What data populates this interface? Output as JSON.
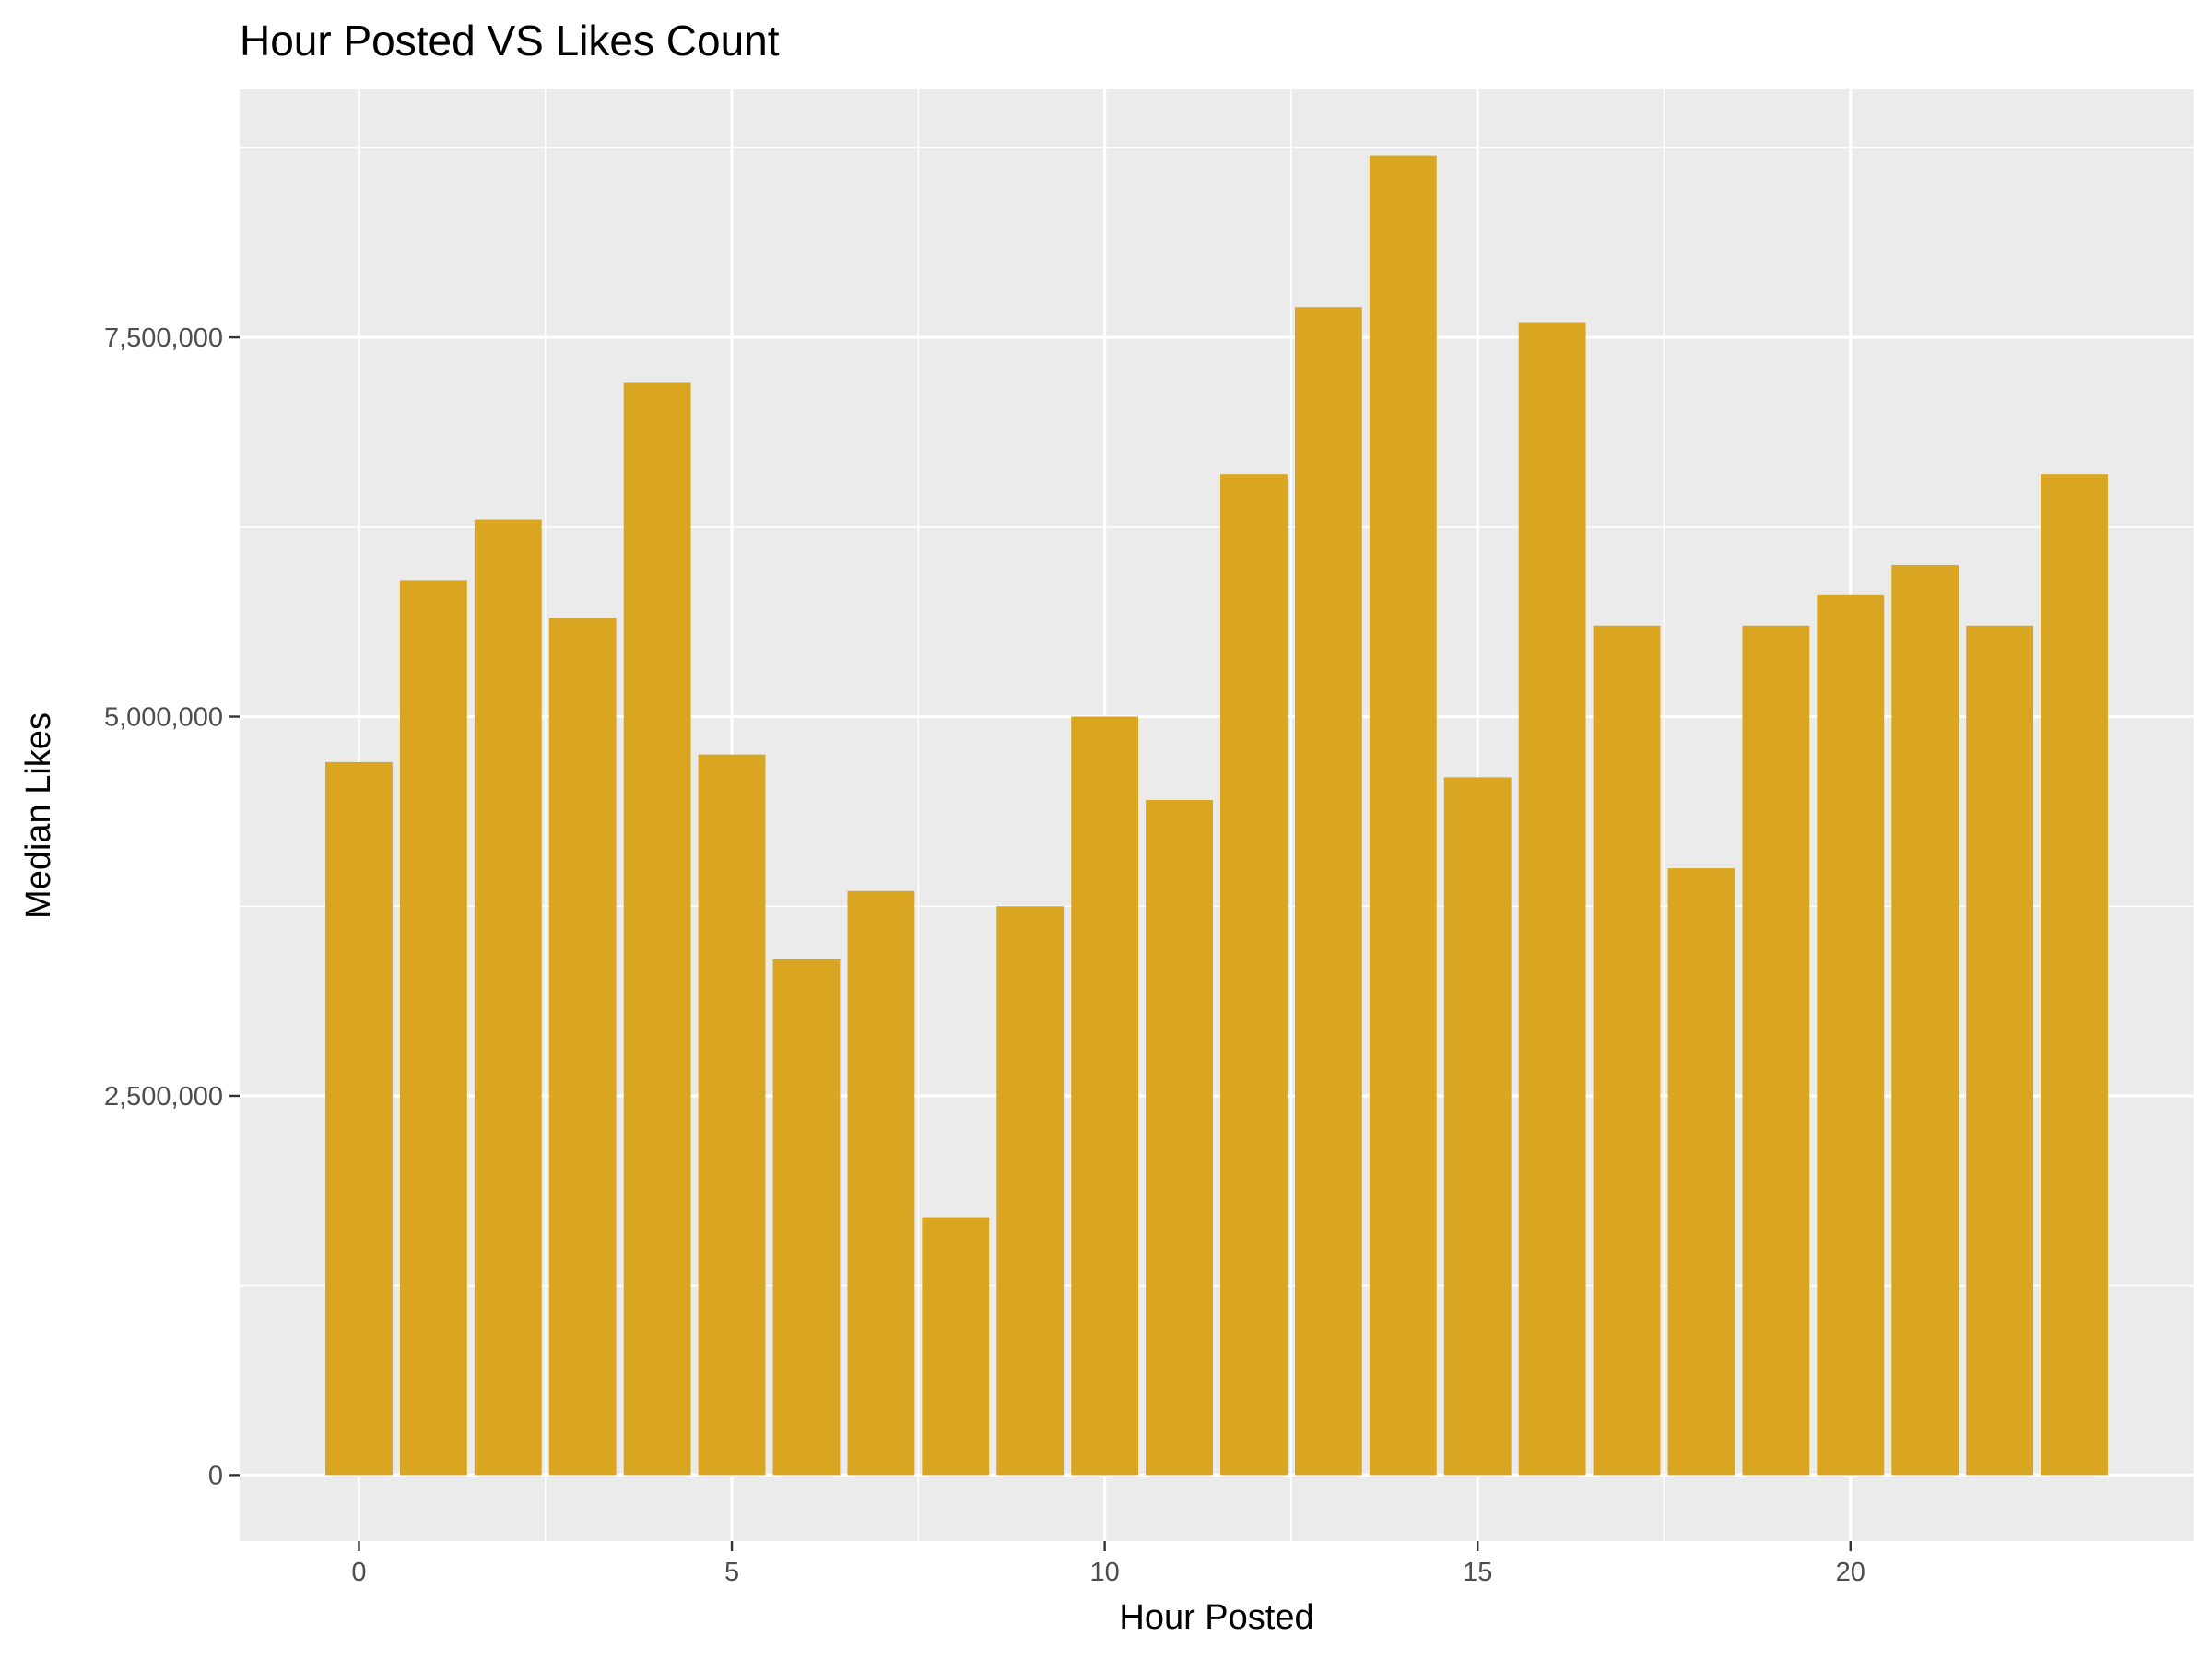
{
  "chart_data": {
    "type": "bar",
    "title": "Hour Posted VS Likes Count",
    "xlabel": "Hour Posted",
    "ylabel": "Median Likes",
    "x": [
      0,
      1,
      2,
      3,
      4,
      5,
      6,
      7,
      8,
      9,
      10,
      11,
      12,
      13,
      14,
      15,
      16,
      17,
      18,
      19,
      20,
      21,
      22,
      23
    ],
    "values": [
      4700000,
      5900000,
      6300000,
      5650000,
      7200000,
      4750000,
      3400000,
      3850000,
      1700000,
      3750000,
      5000000,
      4450000,
      6600000,
      7700000,
      8700000,
      4600000,
      7600000,
      5600000,
      4000000,
      5600000,
      5800000,
      6000000,
      5600000,
      6600000
    ],
    "xlim": [
      -1.6,
      24.6
    ],
    "ylim": [
      -435000,
      9135000
    ],
    "x_ticks": [
      0,
      5,
      10,
      15,
      20
    ],
    "x_tick_labels": [
      "0",
      "5",
      "10",
      "15",
      "20"
    ],
    "y_ticks": [
      0,
      2500000,
      5000000,
      7500000
    ],
    "y_tick_labels": [
      "0",
      "2,500,000",
      "5,000,000",
      "7,500,000"
    ],
    "bar_color": "#DAA520",
    "panel_background": "#EBEBEB",
    "grid_color": "#FFFFFF",
    "grid": true,
    "legend": false
  }
}
